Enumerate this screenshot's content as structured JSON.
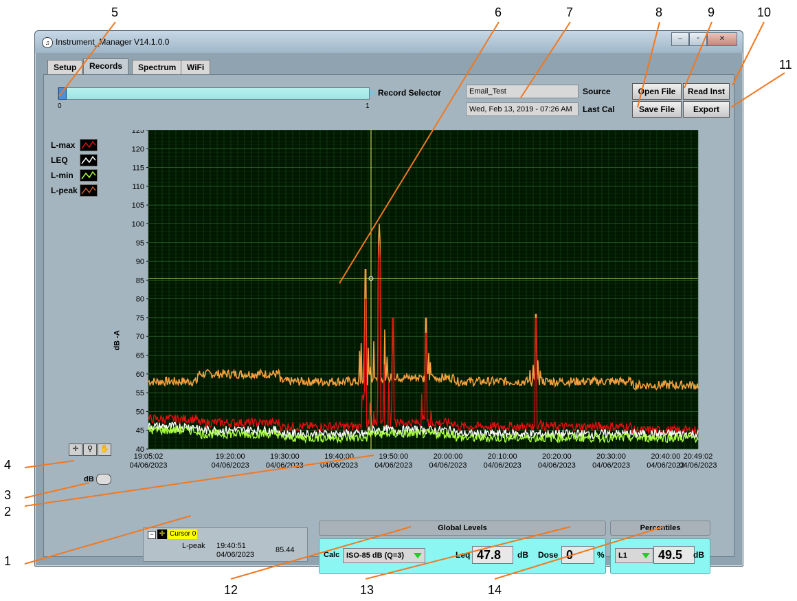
{
  "window": {
    "title": "Instrument_Manager V14.1.0.0",
    "icon": "app-icon"
  },
  "tabs": [
    {
      "label": "Setup",
      "active": false
    },
    {
      "label": "Records",
      "active": true
    },
    {
      "label": "Spectrum",
      "active": false
    },
    {
      "label": "WiFi",
      "active": false
    }
  ],
  "record_selector": {
    "label": "Record Selector",
    "min": "0",
    "max": "1",
    "value": 0
  },
  "source": {
    "value": "Email_Test",
    "label": "Source"
  },
  "last_cal": {
    "value": "Wed, Feb 13, 2019 - 07:26 AM",
    "label": "Last Cal"
  },
  "buttons": {
    "open_file": "Open File",
    "read_inst": "Read Inst",
    "save_file": "Save File",
    "export": "Export"
  },
  "legend": [
    {
      "name": "L-max",
      "color": "#e01010"
    },
    {
      "name": "LEQ",
      "color": "#ffffff"
    },
    {
      "name": "L-min",
      "color": "#a8ff40"
    },
    {
      "name": "L-peak",
      "color": "#c85a30"
    }
  ],
  "chart_data": {
    "type": "line",
    "ylabel": "dB -A",
    "ylim": [
      40,
      125
    ],
    "yticks": [
      "125",
      "120",
      "115",
      "110",
      "105",
      "100",
      "95",
      "90",
      "85",
      "80",
      "75",
      "70",
      "65",
      "60",
      "55",
      "50",
      "45",
      "40"
    ],
    "xticks": [
      {
        "time": "19:05:02",
        "date": "04/06/2023"
      },
      {
        "time": "19:20:00",
        "date": "04/06/2023"
      },
      {
        "time": "19:30:00",
        "date": "04/06/2023"
      },
      {
        "time": "19:40:00",
        "date": "04/06/2023"
      },
      {
        "time": "19:50:00",
        "date": "04/06/2023"
      },
      {
        "time": "20:00:00",
        "date": "04/06/2023"
      },
      {
        "time": "20:10:00",
        "date": "04/06/2023"
      },
      {
        "time": "20:20:00",
        "date": "04/06/2023"
      },
      {
        "time": "20:30:00",
        "date": "04/06/2023"
      },
      {
        "time": "20:40:00",
        "date": "04/06/2023"
      },
      {
        "time": "20:49:02",
        "date": "04/06/2023"
      }
    ],
    "series": [
      {
        "name": "L-peak",
        "color": "#f5a040",
        "baseline_segments": [
          [
            0,
            58
          ],
          [
            0.09,
            60
          ],
          [
            0.24,
            58
          ],
          [
            0.4,
            59
          ],
          [
            0.56,
            58
          ],
          [
            0.72,
            58
          ],
          [
            0.88,
            57
          ]
        ],
        "spikes": [
          [
            0.395,
            90
          ],
          [
            0.42,
            100
          ],
          [
            0.445,
            77
          ],
          [
            0.505,
            77
          ],
          [
            0.705,
            78
          ]
        ]
      },
      {
        "name": "L-max",
        "color": "#e01010",
        "baseline_segments": [
          [
            0,
            48
          ],
          [
            0.09,
            47
          ],
          [
            0.24,
            46
          ],
          [
            0.4,
            47
          ],
          [
            0.56,
            46
          ],
          [
            0.72,
            46
          ],
          [
            0.88,
            45
          ]
        ],
        "spikes": [
          [
            0.395,
            82
          ],
          [
            0.42,
            95
          ],
          [
            0.445,
            77
          ],
          [
            0.505,
            73
          ],
          [
            0.705,
            77
          ]
        ]
      },
      {
        "name": "LEQ",
        "color": "#ffffff",
        "baseline_segments": [
          [
            0,
            46
          ],
          [
            0.09,
            45
          ],
          [
            0.24,
            44
          ],
          [
            0.4,
            45
          ],
          [
            0.56,
            44
          ],
          [
            0.72,
            44
          ],
          [
            0.88,
            44
          ]
        ]
      },
      {
        "name": "L-min",
        "color": "#a8ff40",
        "baseline_segments": [
          [
            0,
            45
          ],
          [
            0.09,
            44
          ],
          [
            0.24,
            43
          ],
          [
            0.4,
            44
          ],
          [
            0.56,
            43
          ],
          [
            0.72,
            43
          ],
          [
            0.88,
            43
          ]
        ]
      }
    ],
    "cursor": {
      "x_time": "19:40:51",
      "y_value": 85.44
    },
    "grid": true
  },
  "cursor_panel": {
    "name": "Cursor 0",
    "channel": "L-peak",
    "time": "19:40:51",
    "date": "04/06/2023",
    "value": "85.44"
  },
  "y_scale_label": "dB",
  "global_levels": {
    "header": "Global Levels",
    "calc_label": "Calc",
    "calc_value": "ISO-85 dB (Q=3)",
    "leq_label": "Leq",
    "leq_value": "47.8",
    "leq_unit": "dB",
    "dose_label": "Dose",
    "dose_value": "0",
    "dose_unit": "%"
  },
  "percentiles": {
    "header": "Percentiles",
    "selector": "L1",
    "value": "49.5",
    "unit": "dB"
  },
  "callouts": [
    "1",
    "2",
    "3",
    "4",
    "5",
    "6",
    "7",
    "8",
    "9",
    "10",
    "11",
    "12",
    "13",
    "14"
  ]
}
